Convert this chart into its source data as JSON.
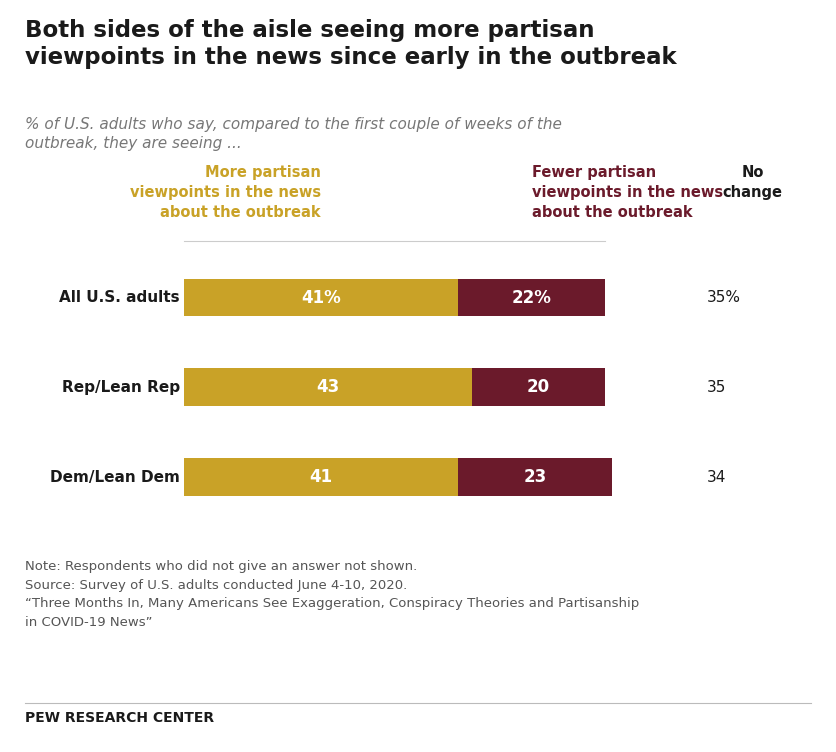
{
  "title": "Both sides of the aisle seeing more partisan\nviewpoints in the news since early in the outbreak",
  "subtitle": "% of U.S. adults who say, compared to the first couple of weeks of the\noutbreak, they are seeing ...",
  "categories": [
    "All U.S. adults",
    "Rep/Lean Rep",
    "Dem/Lean Dem"
  ],
  "more_partisan": [
    41,
    43,
    41
  ],
  "fewer_partisan": [
    22,
    20,
    23
  ],
  "no_change": [
    "35%",
    "35",
    "34"
  ],
  "more_color": "#C9A227",
  "fewer_color": "#6B1A2B",
  "bar_labels_more": [
    "41%",
    "43",
    "41"
  ],
  "bar_labels_fewer": [
    "22%",
    "20",
    "23"
  ],
  "note_text": "Note: Respondents who did not give an answer not shown.\nSource: Survey of U.S. adults conducted June 4-10, 2020.\n“Three Months In, Many Americans See Exaggeration, Conspiracy Theories and Partisanship\nin COVID-19 News”",
  "footer": "PEW RESEARCH CENTER",
  "background_color": "#FFFFFF",
  "title_color": "#1a1a1a",
  "subtitle_color": "#777777",
  "note_color": "#555555",
  "bar_label_fs": 12,
  "category_fs": 11,
  "header_fs": 10.5,
  "no_change_fs": 11
}
